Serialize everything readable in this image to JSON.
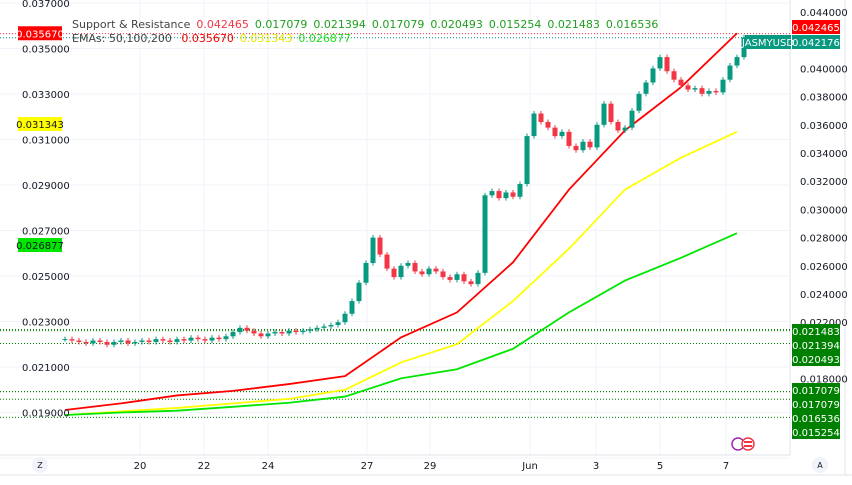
{
  "legend": {
    "sr_label": "Support & Resistance",
    "sr_values": [
      "0.042465",
      "0.017079",
      "0.021394",
      "0.017079",
      "0.020493",
      "0.015254",
      "0.021483",
      "0.016536"
    ],
    "ema_label": "EMAs: 50,100,200",
    "ema_values": [
      "0.035670",
      "0.031343",
      "0.026877"
    ]
  },
  "colors": {
    "up": "#089981",
    "down": "#f23645",
    "ema50": "#ff0000",
    "ema100": "#ffff00",
    "ema200": "#00e600",
    "sr": "#008000",
    "grid": "#f0f3fa"
  },
  "chart_data": {
    "type": "candlestick",
    "symbol": "JASMYUSD",
    "last_price": "0.042176",
    "resistance_label": "0.042465",
    "x_ticks": [
      "Z",
      "20",
      "22",
      "24",
      "27",
      "29",
      "Jun",
      "3",
      "5",
      "7",
      "A"
    ],
    "right_axis": {
      "ticks": [
        "0.044000",
        "0.040000",
        "0.038000",
        "0.036000",
        "0.034000",
        "0.032000",
        "0.030000",
        "0.028000",
        "0.026000",
        "0.024000",
        "0.022000",
        "0.018000"
      ],
      "range": [
        0.0135,
        0.0445
      ]
    },
    "left_axis": {
      "ticks": [
        "0.037000",
        "0.035000",
        "0.033000",
        "0.031000",
        "0.029000",
        "0.027000",
        "0.025000",
        "0.023000",
        "0.021000",
        "0.019000"
      ],
      "range": [
        0.0179,
        0.0371
      ]
    },
    "closes": [
      0.0208,
      0.0207,
      0.0206,
      0.0205,
      0.0207,
      0.0206,
      0.0204,
      0.0206,
      0.0207,
      0.0205,
      0.0206,
      0.0207,
      0.0206,
      0.0208,
      0.0207,
      0.0206,
      0.0208,
      0.0207,
      0.0209,
      0.0208,
      0.0207,
      0.0209,
      0.0208,
      0.021,
      0.0213,
      0.0216,
      0.0214,
      0.0212,
      0.021,
      0.0212,
      0.0213,
      0.0212,
      0.0214,
      0.0213,
      0.0214,
      0.0215,
      0.0216,
      0.0217,
      0.0218,
      0.022,
      0.0226,
      0.0235,
      0.0248,
      0.0262,
      0.028,
      0.0268,
      0.0258,
      0.0252,
      0.026,
      0.0262,
      0.0256,
      0.0254,
      0.0258,
      0.0256,
      0.0252,
      0.025,
      0.0254,
      0.0249,
      0.0247,
      0.0255,
      0.031,
      0.0313,
      0.0308,
      0.0312,
      0.0309,
      0.0318,
      0.0352,
      0.0368,
      0.0362,
      0.0358,
      0.0352,
      0.0355,
      0.0345,
      0.0342,
      0.0348,
      0.0344,
      0.036,
      0.0375,
      0.0362,
      0.0356,
      0.0358,
      0.037,
      0.0382,
      0.039,
      0.04,
      0.0408,
      0.0398,
      0.0392,
      0.0388,
      0.0385,
      0.0386,
      0.0382,
      0.0384,
      0.0383,
      0.0392,
      0.0402,
      0.0408,
      0.0422
    ],
    "ema": [
      {
        "name": "50",
        "value_label": "0.035670",
        "values": [
          0.01911,
          0.0194,
          0.01975,
          0.01995,
          0.02025,
          0.0206,
          0.0223,
          0.0234,
          0.0256,
          0.0288,
          0.0314,
          0.0333,
          0.03567
        ]
      },
      {
        "name": "100",
        "value_label": "0.031343",
        "values": [
          0.01889,
          0.01905,
          0.0192,
          0.0194,
          0.0196,
          0.02,
          0.0212,
          0.022,
          0.0239,
          0.0262,
          0.0288,
          0.0302,
          0.03134
        ]
      },
      {
        "name": "200",
        "value_label": "0.026877",
        "values": [
          0.01889,
          0.019,
          0.01908,
          0.01925,
          0.01943,
          0.0197,
          0.0205,
          0.0209,
          0.0218,
          0.0234,
          0.0248,
          0.0258,
          0.02688
        ]
      }
    ],
    "support_resistance": [
      "0.021483",
      "0.021394",
      "0.020493",
      "0.017079",
      "0.017079",
      "0.016536",
      "0.015254"
    ]
  }
}
